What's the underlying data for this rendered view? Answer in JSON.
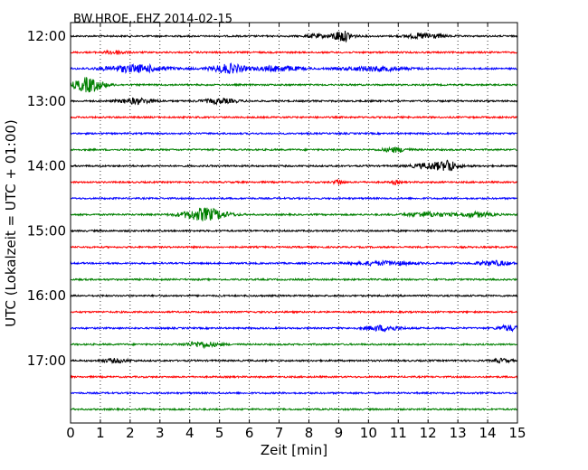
{
  "chart_data": {
    "type": "line",
    "title": "BW.HROE..EHZ 2014-02-15",
    "xlabel": "Zeit  [min]",
    "ylabel": "UTC (Lokalzeit = UTC + 01:00)",
    "xlim": [
      0,
      15
    ],
    "x_ticks": [
      "0",
      "1",
      "2",
      "3",
      "4",
      "5",
      "6",
      "7",
      "8",
      "9",
      "10",
      "11",
      "12",
      "13",
      "14",
      "15"
    ],
    "y_ticks": [
      "12:00",
      "13:00",
      "14:00",
      "15:00",
      "16:00",
      "17:00"
    ],
    "grid_x": "dotted",
    "colors": [
      "#000000",
      "#ff0000",
      "#0000ff",
      "#008000"
    ],
    "traces": [
      {
        "start": "12:00",
        "color": "#000000",
        "events": [
          {
            "t": 9.1,
            "amp": 6,
            "width": 0.5
          },
          {
            "t": 11.9,
            "amp": 3,
            "width": 0.8
          },
          {
            "t": 8.2,
            "amp": 2,
            "width": 0.4
          }
        ]
      },
      {
        "start": "12:15",
        "color": "#ff0000",
        "events": [
          {
            "t": 1.5,
            "amp": 2,
            "width": 0.5
          }
        ]
      },
      {
        "start": "12:30",
        "color": "#0000ff",
        "events": [
          {
            "t": 2.2,
            "amp": 4,
            "width": 1.5
          },
          {
            "t": 5.3,
            "amp": 5,
            "width": 0.8
          },
          {
            "t": 7.0,
            "amp": 3,
            "width": 1.0
          },
          {
            "t": 10.2,
            "amp": 2.5,
            "width": 1.5
          }
        ]
      },
      {
        "start": "12:45",
        "color": "#008000",
        "events": [
          {
            "t": 0.6,
            "amp": 8,
            "width": 0.7
          }
        ]
      },
      {
        "start": "13:00",
        "color": "#000000",
        "events": [
          {
            "t": 2.2,
            "amp": 3,
            "width": 0.8
          },
          {
            "t": 5.0,
            "amp": 2.5,
            "width": 0.8
          }
        ]
      },
      {
        "start": "13:15",
        "color": "#ff0000",
        "events": []
      },
      {
        "start": "13:30",
        "color": "#0000ff",
        "events": []
      },
      {
        "start": "13:45",
        "color": "#008000",
        "events": [
          {
            "t": 10.9,
            "amp": 2.5,
            "width": 0.6
          }
        ]
      },
      {
        "start": "14:00",
        "color": "#000000",
        "events": [
          {
            "t": 12.3,
            "amp": 4,
            "width": 1.0
          },
          {
            "t": 12.7,
            "amp": 5,
            "width": 0.2
          }
        ]
      },
      {
        "start": "14:15",
        "color": "#ff0000",
        "events": [
          {
            "t": 9.0,
            "amp": 3,
            "width": 0.2
          },
          {
            "t": 10.9,
            "amp": 2,
            "width": 0.2
          }
        ]
      },
      {
        "start": "14:30",
        "color": "#0000ff",
        "events": []
      },
      {
        "start": "14:45",
        "color": "#008000",
        "events": [
          {
            "t": 4.5,
            "amp": 7,
            "width": 1.0
          },
          {
            "t": 12.0,
            "amp": 2.5,
            "width": 1.0
          },
          {
            "t": 13.6,
            "amp": 2.5,
            "width": 0.8
          }
        ]
      },
      {
        "start": "15:00",
        "color": "#000000",
        "events": []
      },
      {
        "start": "15:15",
        "color": "#ff0000",
        "events": []
      },
      {
        "start": "15:30",
        "color": "#0000ff",
        "events": [
          {
            "t": 10.5,
            "amp": 2,
            "width": 1.5
          },
          {
            "t": 14.2,
            "amp": 2.5,
            "width": 0.8
          }
        ]
      },
      {
        "start": "15:45",
        "color": "#008000",
        "events": []
      },
      {
        "start": "16:00",
        "color": "#000000",
        "events": []
      },
      {
        "start": "16:15",
        "color": "#ff0000",
        "events": []
      },
      {
        "start": "16:30",
        "color": "#0000ff",
        "events": [
          {
            "t": 10.5,
            "amp": 3,
            "width": 0.8
          },
          {
            "t": 14.7,
            "amp": 3,
            "width": 0.5
          }
        ]
      },
      {
        "start": "16:45",
        "color": "#008000",
        "events": [
          {
            "t": 4.4,
            "amp": 3,
            "width": 0.8
          }
        ]
      },
      {
        "start": "17:00",
        "color": "#000000",
        "events": [
          {
            "t": 1.5,
            "amp": 2,
            "width": 0.6
          },
          {
            "t": 14.5,
            "amp": 2,
            "width": 0.4
          }
        ]
      },
      {
        "start": "17:15",
        "color": "#ff0000",
        "events": []
      },
      {
        "start": "17:30",
        "color": "#0000ff",
        "events": []
      },
      {
        "start": "17:45",
        "color": "#008000",
        "events": []
      }
    ]
  }
}
